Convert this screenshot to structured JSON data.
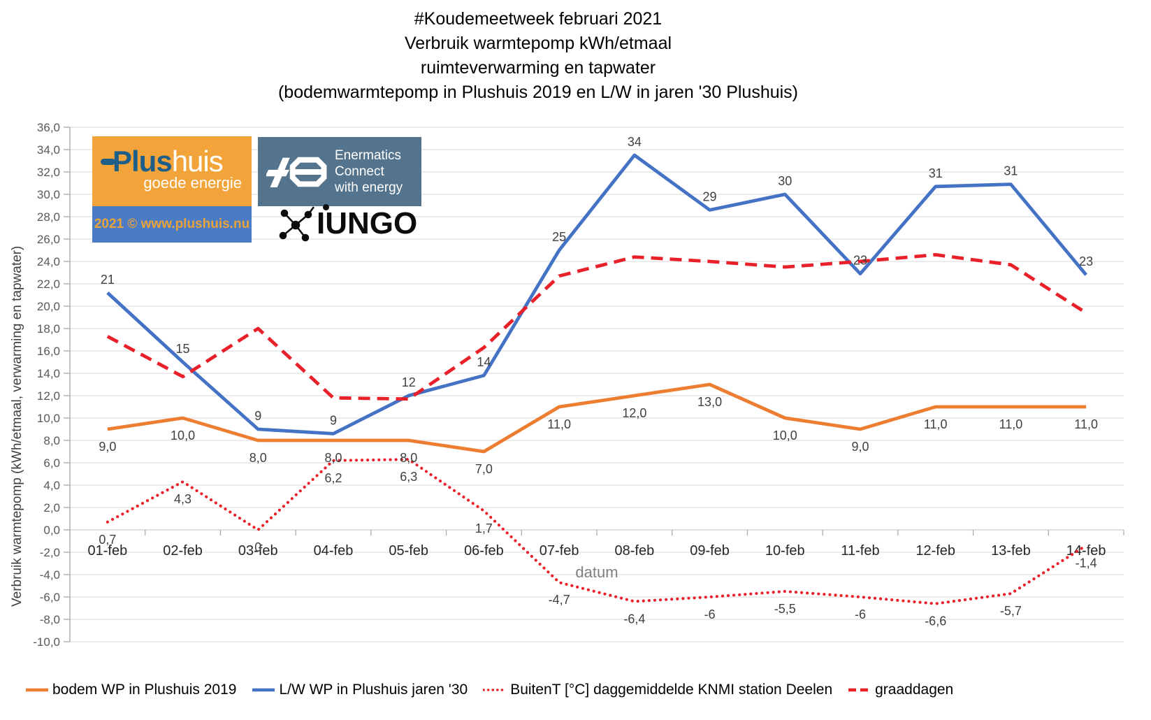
{
  "chart_data": {
    "type": "line",
    "title_lines": [
      "#Koudemeetweek februari 2021",
      "Verbruik warmtepomp kWh/etmaal",
      "ruimteverwarming en tapwater",
      "(bodemwarmtepomp in Plushuis 2019 en L/W in jaren '30 Plushuis)"
    ],
    "xlabel": "datum",
    "ylabel": "Verbruik warmtepomp (kWh/etmaal, verwarming en tapwater)",
    "ylim": [
      -10,
      36
    ],
    "ytick_step": 2,
    "ytick_format": "decimal-comma",
    "grid": "horizontal",
    "legend_position": "bottom",
    "categories": [
      "01-feb",
      "02-feb",
      "03-feb",
      "04-feb",
      "05-feb",
      "06-feb",
      "07-feb",
      "08-feb",
      "09-feb",
      "10-feb",
      "11-feb",
      "12-feb",
      "13-feb",
      "14-feb"
    ],
    "series": [
      {
        "name": "bodem WP in Plushuis 2019",
        "color": "#ED7D31",
        "line_style": "solid",
        "label_position": "below",
        "values": [
          9,
          10,
          8,
          8,
          8,
          7,
          11,
          12,
          13,
          10,
          9,
          11,
          11,
          11
        ],
        "labels": [
          "9,0",
          "10,0",
          "8,0",
          "8,0",
          "8,0",
          "7,0",
          "11,0",
          "12,0",
          "13,0",
          "10,0",
          "9,0",
          "11,0",
          "11,0",
          "11,0"
        ]
      },
      {
        "name": "L/W WP in Plushuis jaren '30",
        "color": "#4472C4",
        "line_style": "solid",
        "label_position": "above",
        "values": [
          21.2,
          15,
          9,
          8.6,
          12,
          13.8,
          25,
          33.5,
          28.6,
          30,
          22.9,
          30.7,
          30.9,
          22.8
        ],
        "labels": [
          "21",
          "15",
          "9",
          "9",
          "12",
          "14",
          "25",
          "34",
          "29",
          "30",
          "23",
          "31",
          "31",
          "23"
        ]
      },
      {
        "name": "BuitenT [°C] daggemiddelde KNMI station Deelen",
        "color": "#E8202A",
        "line_style": "dotted",
        "label_position": "below",
        "values": [
          0.7,
          4.3,
          0,
          6.2,
          6.3,
          1.7,
          -4.7,
          -6.4,
          -6,
          -5.5,
          -6,
          -6.6,
          -5.7,
          -1.4
        ],
        "labels": [
          "0,7",
          "4,3",
          "0",
          "6,2",
          "6,3",
          "1,7",
          "-4,7",
          "-6,4",
          "-6",
          "-5,5",
          "-6",
          "-6,6",
          "-5,7",
          "-1,4"
        ]
      },
      {
        "name": "graaddagen",
        "color": "#E8202A",
        "line_style": "dashed",
        "label_position": "none",
        "values": [
          17.3,
          13.7,
          18,
          11.8,
          11.7,
          16.3,
          22.7,
          24.4,
          24,
          23.5,
          24,
          24.6,
          23.7,
          19.4
        ],
        "labels": null
      }
    ]
  },
  "logos": {
    "plushuis": {
      "brand_strong": "Plus",
      "brand_light": "huis",
      "tagline": "goede energie",
      "copyright": "2021 © www.plushuis.nu"
    },
    "enermatics": {
      "line1": "Enermatics",
      "line2": "Connect",
      "line3": "with energy"
    },
    "iungo": {
      "name": "IUNGO"
    }
  },
  "colors": {
    "grid": "#D9D9D9",
    "axis": "#A6A6A6",
    "plushuis_orange": "#F2A43A",
    "plushuis_blue": "#4A7BC4",
    "enermatics_bg": "#54748E"
  }
}
